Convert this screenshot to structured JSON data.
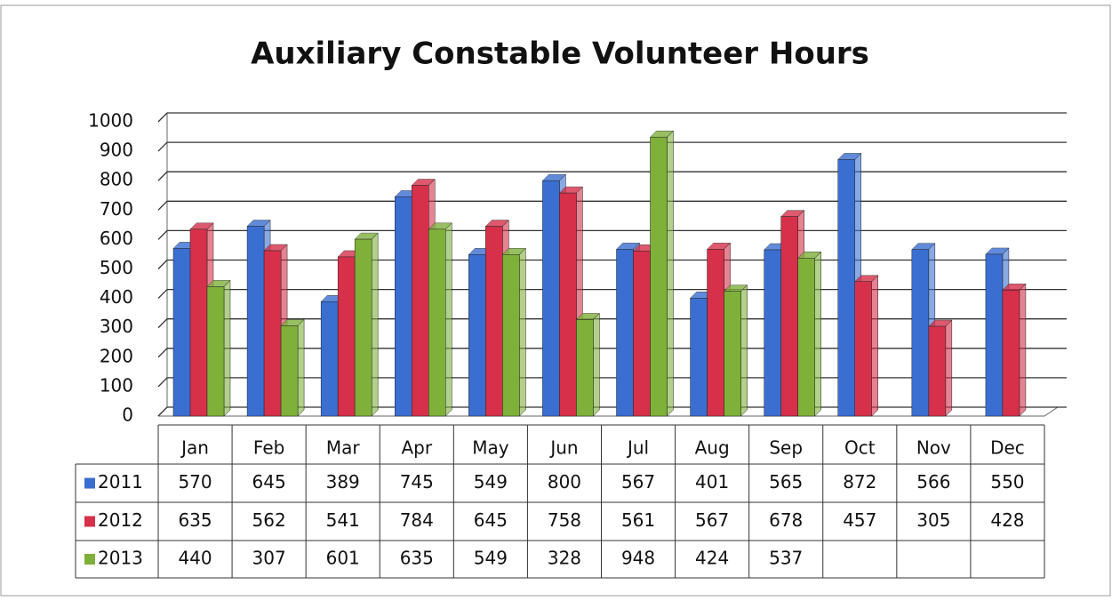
{
  "chart_data": {
    "type": "bar",
    "title": "Auxiliary Constable Volunteer Hours",
    "categories": [
      "Jan",
      "Feb",
      "Mar",
      "Apr",
      "May",
      "Jun",
      "Jul",
      "Aug",
      "Sep",
      "Oct",
      "Nov",
      "Dec"
    ],
    "series": [
      {
        "name": "2011",
        "color": "#3a6fd1",
        "values": [
          570,
          645,
          389,
          745,
          549,
          800,
          567,
          401,
          565,
          872,
          566,
          550
        ]
      },
      {
        "name": "2012",
        "color": "#d6304a",
        "values": [
          635,
          562,
          541,
          784,
          645,
          758,
          561,
          567,
          678,
          457,
          305,
          428
        ]
      },
      {
        "name": "2013",
        "color": "#7fb03a",
        "values": [
          440,
          307,
          601,
          635,
          549,
          328,
          948,
          424,
          537,
          null,
          null,
          null
        ]
      }
    ],
    "ylim": [
      0,
      1000
    ],
    "yticks": [
      0,
      100,
      200,
      300,
      400,
      500,
      600,
      700,
      800,
      900,
      1000
    ],
    "grid": true
  }
}
